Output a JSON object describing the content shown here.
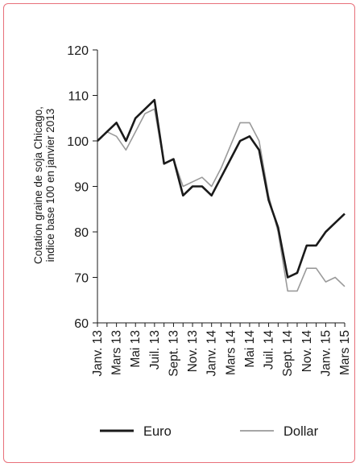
{
  "chart_data": {
    "type": "line",
    "ylabel_lines": [
      "Cotation graine de soja Chicago,",
      "indice base 100 en janvier 2013"
    ],
    "ylim": [
      60,
      120
    ],
    "yticks": [
      60,
      70,
      80,
      90,
      100,
      110,
      120
    ],
    "x_tick_labels": [
      "Janv. 13",
      "Mars 13",
      "Mai 13",
      "Juil. 13",
      "Sept. 13",
      "Nov. 13",
      "Janv. 14",
      "Mars 14",
      "Mai 14",
      "Juil. 14",
      "Sept. 14",
      "Nov. 14",
      "Janv. 15",
      "Mars 15"
    ],
    "months": [
      "Janv. 13",
      "Févr. 13",
      "Mars 13",
      "Avr. 13",
      "Mai 13",
      "Juin 13",
      "Juil. 13",
      "Août 13",
      "Sept. 13",
      "Oct. 13",
      "Nov. 13",
      "Déc. 13",
      "Janv. 14",
      "Févr. 14",
      "Mars 14",
      "Avr. 14",
      "Mai 14",
      "Juin 14",
      "Juil. 14",
      "Août 14",
      "Sept. 14",
      "Oct. 14",
      "Nov. 14",
      "Déc. 14",
      "Janv. 15",
      "Févr. 15",
      "Mars 15"
    ],
    "series": [
      {
        "name": "Euro",
        "color": "#1a1a1a",
        "values": [
          100,
          102,
          104,
          100,
          105,
          107,
          109,
          95,
          96,
          88,
          90,
          90,
          88,
          92,
          96,
          100,
          101,
          98,
          87,
          81,
          70,
          71,
          77,
          77,
          80,
          82,
          84
        ]
      },
      {
        "name": "Dollar",
        "color": "#9a9a9a",
        "values": [
          100,
          102,
          101,
          98,
          102,
          106,
          107,
          95,
          96,
          90,
          91,
          92,
          90,
          94,
          99,
          104,
          104,
          100,
          88,
          80,
          67,
          67,
          72,
          72,
          69,
          70,
          68
        ]
      }
    ],
    "legend": "bottom"
  }
}
